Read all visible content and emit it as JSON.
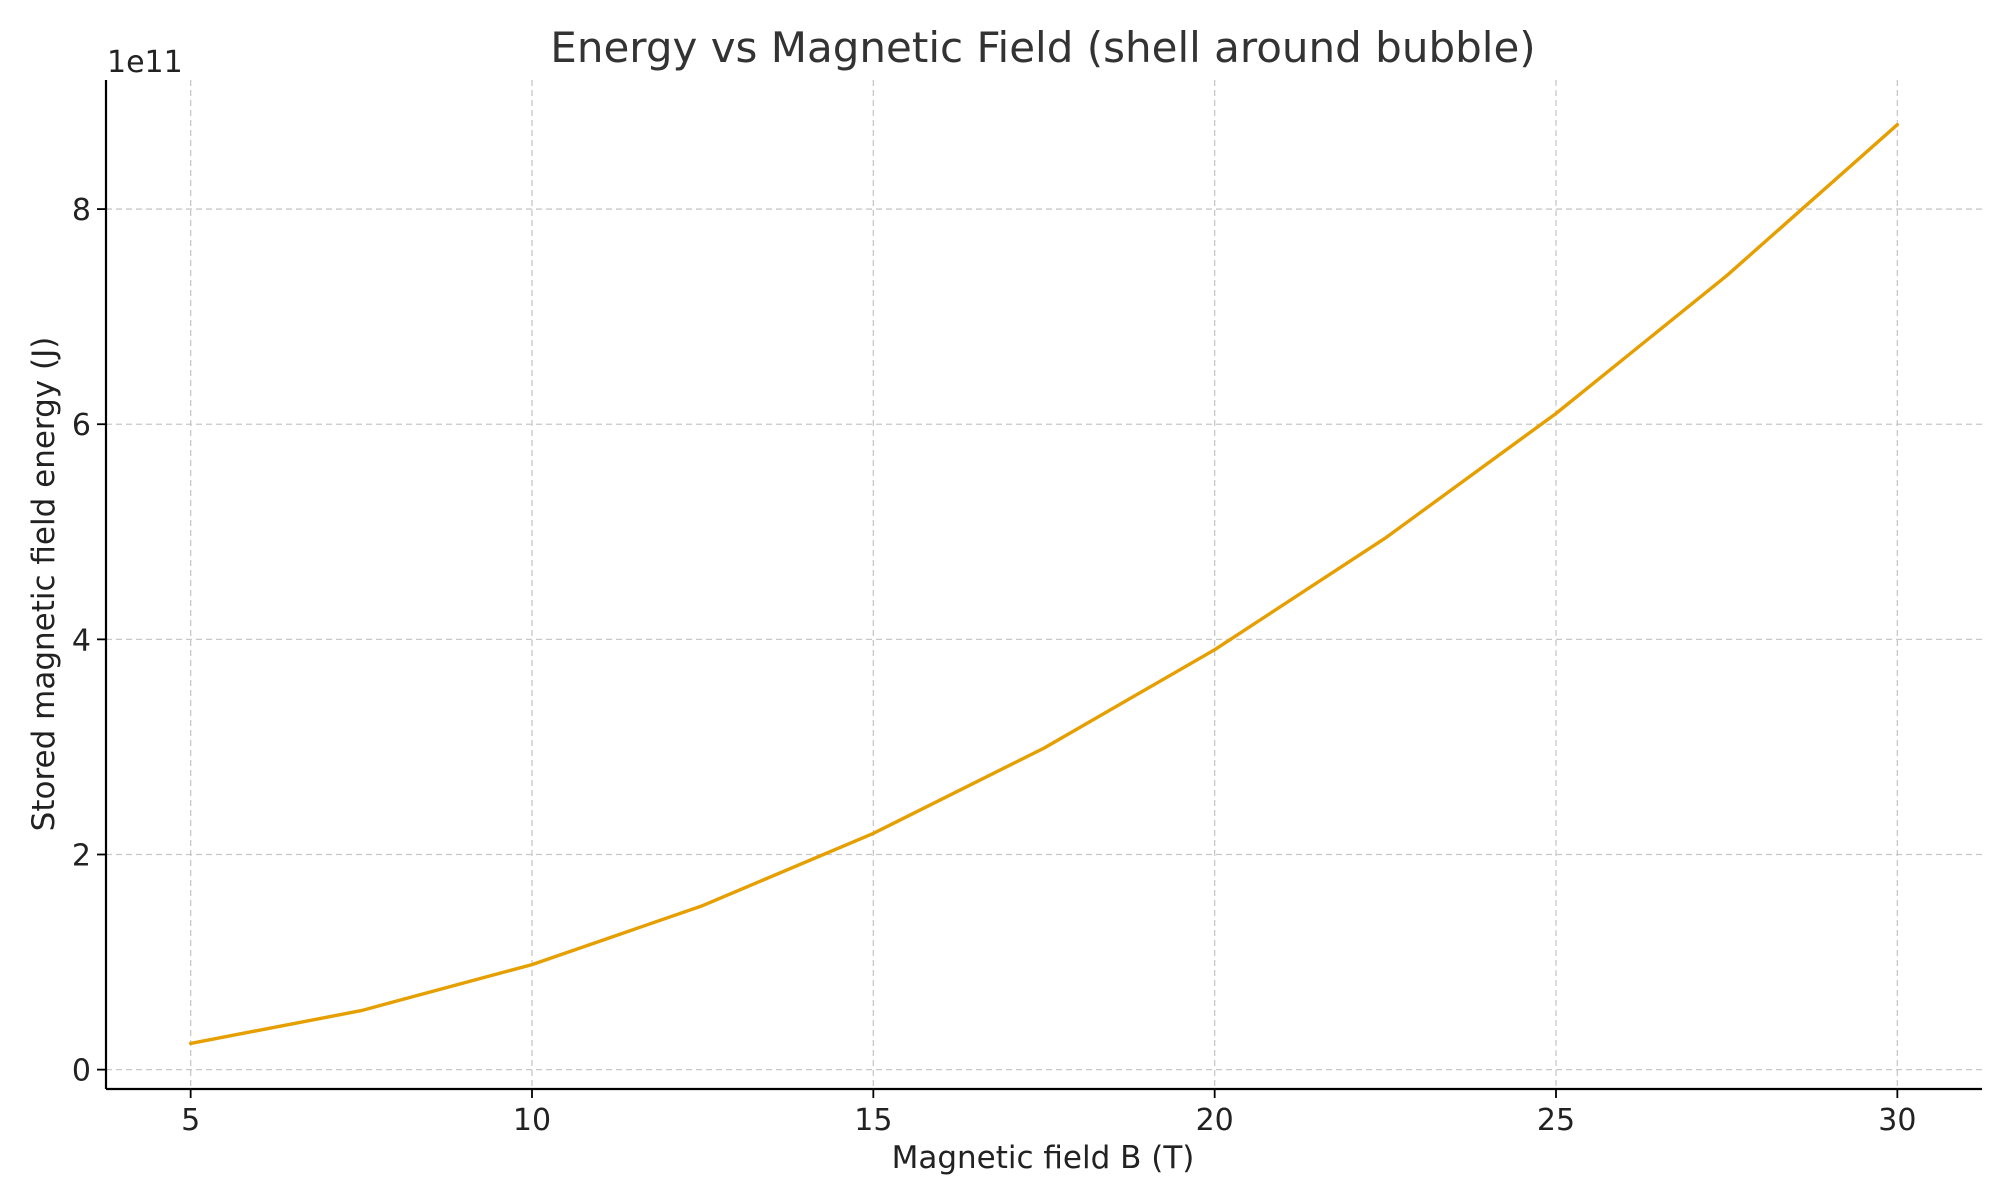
{
  "chart_data": {
    "type": "line",
    "title": "Energy vs Magnetic Field (shell around bubble)",
    "xlabel": "Magnetic field B (T)",
    "ylabel": "Stored magnetic field energy (J)",
    "y_offset_label": "1e11",
    "xlim": [
      3.76,
      31.24
    ],
    "ylim": [
      -0.18,
      9.2
    ],
    "x_ticks": [
      5,
      10,
      15,
      20,
      25,
      30
    ],
    "x_tick_labels": [
      "5",
      "10",
      "15",
      "20",
      "25",
      "30"
    ],
    "y_ticks": [
      0,
      2,
      4,
      6,
      8
    ],
    "y_tick_labels": [
      "0",
      "2",
      "4",
      "6",
      "8"
    ],
    "grid": true,
    "legend": "none",
    "series": [
      {
        "color": "#E69F00",
        "x": [
          5,
          7.5,
          10,
          12.5,
          15,
          17.5,
          20,
          22.5,
          25,
          27.5,
          30
        ],
        "y": [
          0.244,
          0.549,
          0.976,
          1.525,
          2.196,
          2.989,
          3.904,
          4.941,
          6.1,
          7.381,
          8.784
        ]
      }
    ]
  }
}
